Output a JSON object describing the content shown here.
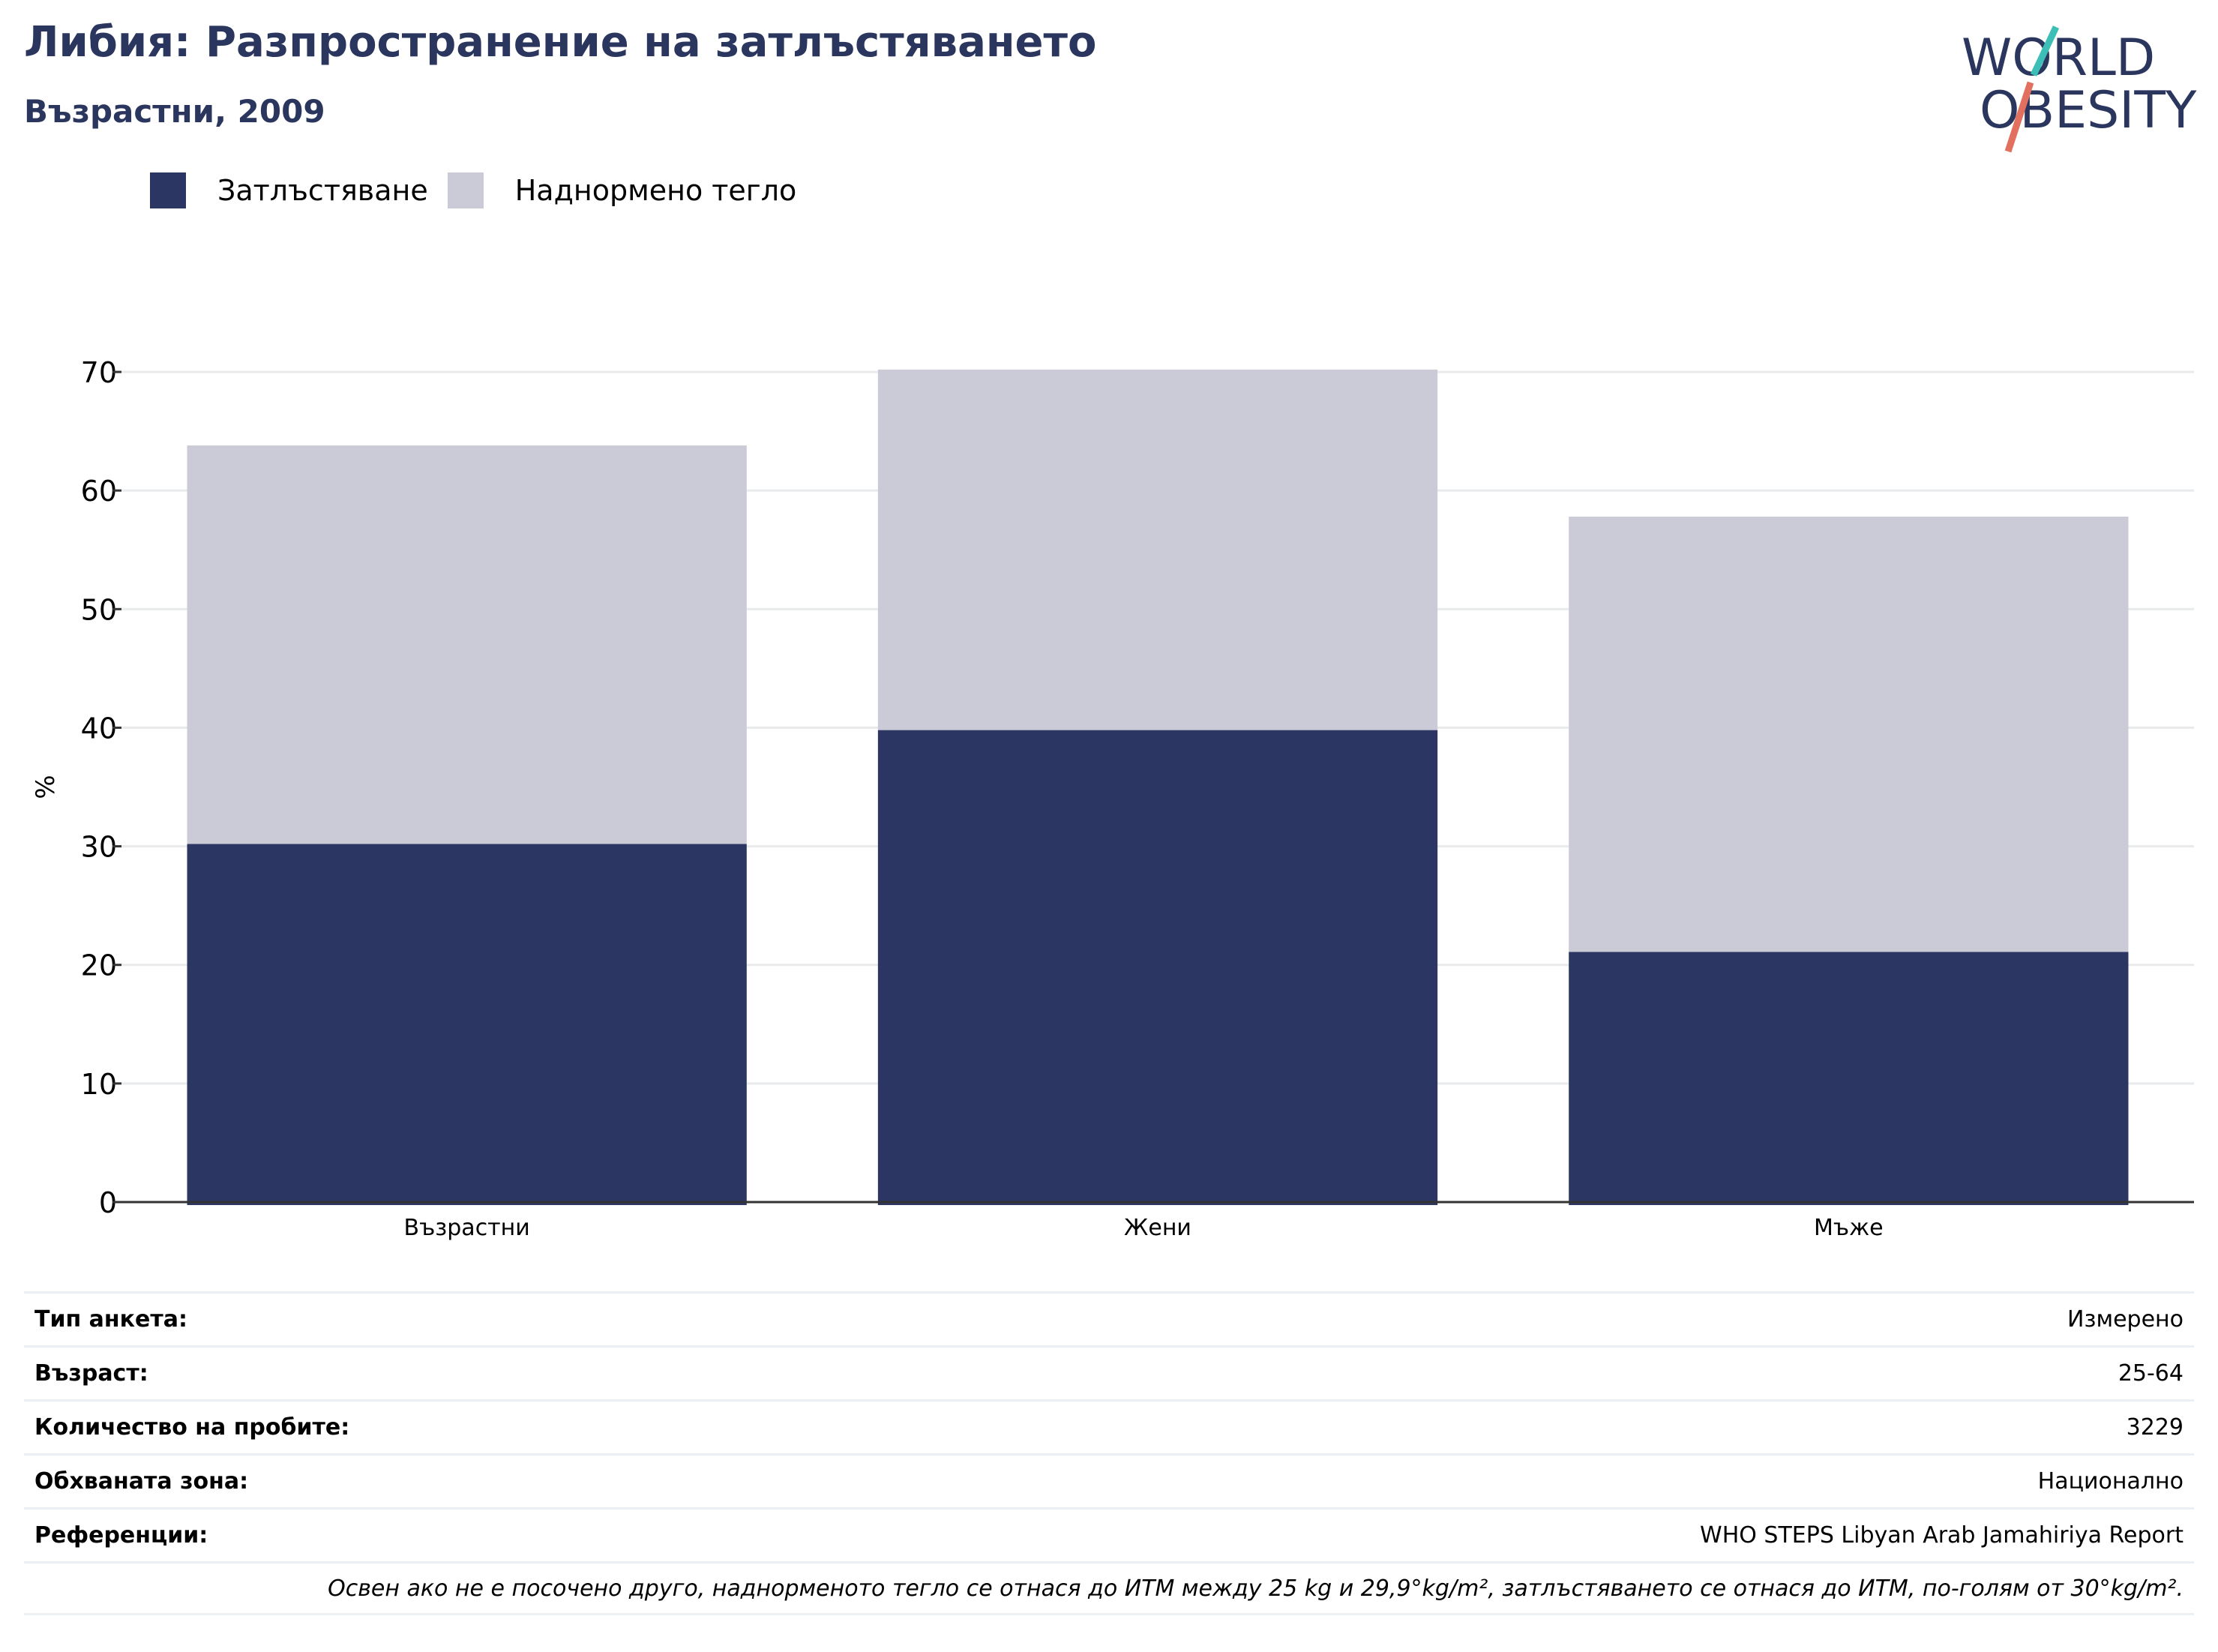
{
  "header": {
    "title": "Либия: Разпространение на затлъстяването",
    "subtitle": "Възрастни, 2009"
  },
  "logo": {
    "line1": "WORLD",
    "line2": "OBESITY",
    "icon": "world-obesity-logo"
  },
  "colors": {
    "obesity": "#2b3663",
    "overweight": "#cacbd6",
    "title": "#2b365f",
    "logo_teal": "#3dbfb8",
    "logo_red": "#e2705e"
  },
  "legend": {
    "obesity_label": "Затлъстяване",
    "overweight_label": "Наднормено тегло"
  },
  "chart_data": {
    "type": "bar",
    "stacked": true,
    "categories": [
      "Възрастни",
      "Жени",
      "Мъже"
    ],
    "series": [
      {
        "name": "Затлъстяване",
        "values": [
          30.2,
          39.8,
          21.1
        ]
      },
      {
        "name": "Наднормено тегло",
        "values": [
          33.6,
          30.4,
          36.7
        ]
      }
    ],
    "ylabel": "%",
    "ylim": [
      0,
      70
    ],
    "yticks": [
      "0",
      "10",
      "20",
      "30",
      "40",
      "50",
      "60",
      "70"
    ],
    "grid": true,
    "legend_position": "top-left"
  },
  "info": [
    {
      "label": "Тип анкета:",
      "value": "Измерено"
    },
    {
      "label": "Възраст:",
      "value": "25-64"
    },
    {
      "label": "Количество на пробите:",
      "value": "3229"
    },
    {
      "label": "Обхваната зона:",
      "value": "Национално"
    },
    {
      "label": "Референции:",
      "value": "WHO STEPS Libyan Arab Jamahiriya Report"
    }
  ],
  "footnote": "Освен ако не е посочено друго, наднорменото тегло се отнася до ИТМ между 25 kg и 29,9°kg/m², затлъстяването се отнася до ИТМ, по-голям от 30°kg/m²."
}
